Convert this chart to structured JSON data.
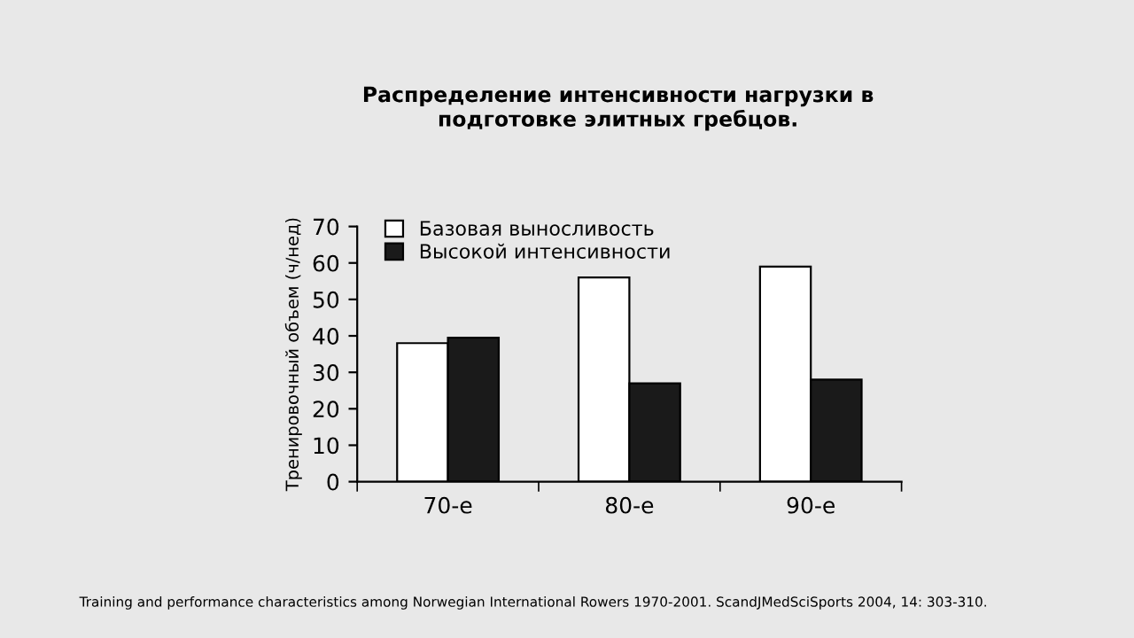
{
  "chart_data": {
    "type": "bar",
    "title": "Распределение интенсивности нагрузки в\nподготовке элитных гребцов.",
    "ylabel": "Тренировочный объем (ч/нед)",
    "categories": [
      "70-е",
      "80-е",
      "90-е"
    ],
    "series": [
      {
        "name": "Базовая выносливость",
        "color": "#ffffff",
        "values": [
          38,
          56,
          59
        ]
      },
      {
        "name": "Высокой интенсивности",
        "color": "#1a1a1a",
        "values": [
          39.5,
          27,
          28
        ]
      }
    ],
    "ylim": [
      0,
      70
    ],
    "yticks": [
      0,
      10,
      20,
      30,
      40,
      50,
      60,
      70
    ],
    "grid": false,
    "legend": "top left",
    "annotations": [
      "Training and performance characteristics among Norwegian International Rowers 1970-2001. ScandJMedSciSports 2004, 14: 303-310."
    ]
  }
}
